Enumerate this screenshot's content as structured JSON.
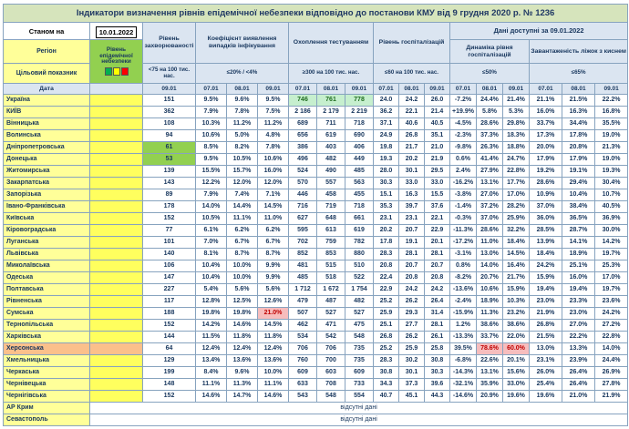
{
  "title": "Індикатори визначення рівнів епідемічної небезпеки відповідно до постанови КМУ від 9 грудня 2020 р. № 1236",
  "header": {
    "as_of_label": "Станом на",
    "as_of_date": "10.01.2022",
    "data_available_label": "Дані доступні за 09.01.2022",
    "region_label": "Регіон",
    "target_label": "Цільовий показник",
    "date_label": "Дата",
    "epidemic_level_label": "Рівень епідемічної небезпеки",
    "groups": [
      {
        "label": "Рівень захворюваності",
        "target": "<75 на 100 тис. нас.",
        "dates": [
          "09.01"
        ]
      },
      {
        "label": "Коефіцієнт виявлення випадків інфікування",
        "target": "≤20% / <4%",
        "dates": [
          "07.01",
          "08.01",
          "09.01"
        ]
      },
      {
        "label": "Охоплення тестуванням",
        "target": "≥300 на 100 тис. нас.",
        "dates": [
          "07.01",
          "08.01",
          "09.01"
        ]
      },
      {
        "label": "Рівень госпіталізацій",
        "target": "≤60 на 100 тис. нас.",
        "dates": [
          "07.01",
          "08.01",
          "09.01"
        ]
      },
      {
        "label": "Динаміка рівня госпіталізацій",
        "target": "≤50%",
        "dates": [
          "07.01",
          "08.01",
          "09.01"
        ]
      },
      {
        "label": "Завантаженість ліжок з киснем",
        "target": "≤65%",
        "dates": [
          "07.01",
          "08.01",
          "09.01"
        ]
      }
    ]
  },
  "legend_colors": [
    "#00b050",
    "#ffff00",
    "#ff0000"
  ],
  "no_data_text": "відсутні дані",
  "rows": [
    {
      "region": "Україна",
      "values": [
        "151",
        "9.5%",
        "9.6%",
        "9.5%",
        "746",
        "761",
        "778",
        "24.0",
        "24.2",
        "26.0",
        "-7.2%",
        "24.4%",
        "21.4%",
        "21.1%",
        "21.5%",
        "22.2%"
      ],
      "highlights": {
        "4": "gs",
        "5": "gs",
        "6": "gs"
      }
    },
    {
      "region": "КИЇВ",
      "values": [
        "362",
        "7.9%",
        "7.8%",
        "7.5%",
        "2 186",
        "2 179",
        "2 219",
        "36.2",
        "22.1",
        "21.4",
        "+19.9%",
        "5.8%",
        "5.3%",
        "16.0%",
        "16.3%",
        "16.8%"
      ]
    },
    {
      "region": "Вінницька",
      "values": [
        "108",
        "10.3%",
        "11.2%",
        "11.2%",
        "689",
        "711",
        "718",
        "37.1",
        "40.6",
        "40.5",
        "-4.5%",
        "28.6%",
        "29.8%",
        "33.7%",
        "34.4%",
        "35.5%"
      ]
    },
    {
      "region": "Волинська",
      "values": [
        "94",
        "10.6%",
        "5.0%",
        "4.8%",
        "656",
        "619",
        "690",
        "24.9",
        "26.8",
        "35.1",
        "-2.3%",
        "37.3%",
        "18.3%",
        "17.3%",
        "17.8%",
        "19.0%"
      ]
    },
    {
      "region": "Дніпропетровська",
      "values": [
        "61",
        "8.5%",
        "8.2%",
        "7.8%",
        "386",
        "403",
        "406",
        "19.8",
        "21.7",
        "21.0",
        "-9.8%",
        "26.3%",
        "18.8%",
        "20.0%",
        "20.8%",
        "21.3%"
      ],
      "highlights": {
        "0": "g"
      }
    },
    {
      "region": "Донецька",
      "values": [
        "53",
        "9.5%",
        "10.5%",
        "10.6%",
        "496",
        "482",
        "449",
        "19.3",
        "20.2",
        "21.9",
        "0.6%",
        "41.4%",
        "24.7%",
        "17.9%",
        "17.9%",
        "19.0%"
      ],
      "highlights": {
        "0": "g"
      }
    },
    {
      "region": "Житомирська",
      "values": [
        "139",
        "15.5%",
        "15.7%",
        "16.0%",
        "524",
        "490",
        "485",
        "28.0",
        "30.1",
        "29.5",
        "2.4%",
        "27.9%",
        "22.8%",
        "19.2%",
        "19.1%",
        "19.3%"
      ]
    },
    {
      "region": "Закарпатська",
      "values": [
        "143",
        "12.2%",
        "12.0%",
        "12.0%",
        "570",
        "557",
        "563",
        "30.3",
        "33.0",
        "33.0",
        "-16.2%",
        "13.1%",
        "17.7%",
        "28.6%",
        "29.4%",
        "30.4%"
      ]
    },
    {
      "region": "Запорізька",
      "values": [
        "89",
        "7.9%",
        "7.4%",
        "7.1%",
        "446",
        "458",
        "455",
        "15.1",
        "16.3",
        "15.5",
        "-3.8%",
        "27.0%",
        "17.0%",
        "10.9%",
        "10.4%",
        "10.7%"
      ]
    },
    {
      "region": "Івано-Франківська",
      "values": [
        "178",
        "14.0%",
        "14.4%",
        "14.5%",
        "716",
        "719",
        "718",
        "35.3",
        "39.7",
        "37.6",
        "-1.4%",
        "37.2%",
        "28.2%",
        "37.0%",
        "38.4%",
        "40.5%"
      ]
    },
    {
      "region": "Київська",
      "values": [
        "152",
        "10.5%",
        "11.1%",
        "11.0%",
        "627",
        "648",
        "661",
        "23.1",
        "23.1",
        "22.1",
        "-0.3%",
        "37.0%",
        "25.9%",
        "36.0%",
        "36.5%",
        "36.9%"
      ]
    },
    {
      "region": "Кіровоградська",
      "values": [
        "77",
        "6.1%",
        "6.2%",
        "6.2%",
        "595",
        "613",
        "619",
        "20.2",
        "20.7",
        "22.9",
        "-11.3%",
        "28.6%",
        "32.2%",
        "28.5%",
        "28.7%",
        "30.0%"
      ]
    },
    {
      "region": "Луганська",
      "values": [
        "101",
        "7.0%",
        "6.7%",
        "6.7%",
        "702",
        "759",
        "782",
        "17.8",
        "19.1",
        "20.1",
        "-17.2%",
        "11.0%",
        "18.4%",
        "13.9%",
        "14.1%",
        "14.2%"
      ]
    },
    {
      "region": "Львівська",
      "values": [
        "140",
        "8.1%",
        "8.7%",
        "8.7%",
        "852",
        "853",
        "880",
        "28.3",
        "28.1",
        "28.1",
        "-3.1%",
        "13.0%",
        "14.5%",
        "18.4%",
        "18.9%",
        "19.7%"
      ]
    },
    {
      "region": "Миколаївська",
      "values": [
        "106",
        "10.4%",
        "10.0%",
        "9.9%",
        "481",
        "515",
        "510",
        "20.8",
        "20.7",
        "20.7",
        "0.8%",
        "14.0%",
        "16.4%",
        "24.2%",
        "25.1%",
        "25.3%"
      ]
    },
    {
      "region": "Одеська",
      "values": [
        "147",
        "10.4%",
        "10.0%",
        "9.9%",
        "485",
        "518",
        "522",
        "22.4",
        "20.8",
        "20.8",
        "-8.2%",
        "20.7%",
        "21.7%",
        "15.9%",
        "16.0%",
        "17.0%"
      ]
    },
    {
      "region": "Полтавська",
      "values": [
        "227",
        "5.4%",
        "5.6%",
        "5.6%",
        "1 712",
        "1 672",
        "1 754",
        "22.9",
        "24.2",
        "24.2",
        "-13.6%",
        "10.6%",
        "15.9%",
        "19.4%",
        "19.4%",
        "19.7%"
      ]
    },
    {
      "region": "Рівненська",
      "values": [
        "117",
        "12.8%",
        "12.5%",
        "12.6%",
        "479",
        "487",
        "482",
        "25.2",
        "26.2",
        "26.4",
        "-2.4%",
        "18.9%",
        "10.3%",
        "23.0%",
        "23.3%",
        "23.6%"
      ]
    },
    {
      "region": "Сумська",
      "values": [
        "188",
        "19.8%",
        "19.8%",
        "21.0%",
        "507",
        "527",
        "527",
        "25.9",
        "29.3",
        "31.4",
        "-15.9%",
        "11.3%",
        "23.2%",
        "21.9%",
        "23.0%",
        "24.2%"
      ],
      "highlights": {
        "3": "r"
      }
    },
    {
      "region": "Тернопільська",
      "values": [
        "152",
        "14.2%",
        "14.6%",
        "14.5%",
        "462",
        "471",
        "475",
        "25.1",
        "27.7",
        "28.1",
        "1.2%",
        "38.6%",
        "38.6%",
        "26.8%",
        "27.0%",
        "27.2%"
      ]
    },
    {
      "region": "Харківська",
      "values": [
        "144",
        "11.5%",
        "11.8%",
        "11.8%",
        "534",
        "542",
        "548",
        "26.8",
        "26.2",
        "26.1",
        "-13.3%",
        "33.7%",
        "22.0%",
        "21.5%",
        "22.2%",
        "22.8%"
      ]
    },
    {
      "region": "Херсонська",
      "values": [
        "64",
        "12.4%",
        "12.4%",
        "12.4%",
        "706",
        "706",
        "735",
        "25.2",
        "25.9",
        "25.8",
        "39.5%",
        "78.6%",
        "60.0%",
        "13.0%",
        "13.3%",
        "14.0%"
      ],
      "highlights": {
        "0": "o",
        "11": "r",
        "12": "r"
      },
      "region_style": "o",
      "level_style": "o"
    },
    {
      "region": "Хмельницька",
      "values": [
        "129",
        "13.4%",
        "13.6%",
        "13.6%",
        "760",
        "700",
        "735",
        "28.3",
        "30.2",
        "30.8",
        "-6.8%",
        "22.6%",
        "20.1%",
        "23.1%",
        "23.9%",
        "24.4%"
      ]
    },
    {
      "region": "Черкаська",
      "values": [
        "199",
        "8.4%",
        "9.6%",
        "10.0%",
        "609",
        "603",
        "609",
        "30.8",
        "30.1",
        "30.3",
        "-14.3%",
        "13.1%",
        "15.6%",
        "26.0%",
        "26.4%",
        "26.9%"
      ]
    },
    {
      "region": "Чернівецька",
      "values": [
        "148",
        "11.1%",
        "11.3%",
        "11.1%",
        "633",
        "708",
        "733",
        "34.3",
        "37.3",
        "39.6",
        "-32.1%",
        "35.9%",
        "33.0%",
        "25.4%",
        "26.4%",
        "27.8%"
      ]
    },
    {
      "region": "Чернігівська",
      "values": [
        "152",
        "14.6%",
        "14.7%",
        "14.6%",
        "543",
        "548",
        "554",
        "40.7",
        "45.1",
        "44.3",
        "-14.6%",
        "20.9%",
        "19.6%",
        "19.6%",
        "21.0%",
        "21.9%"
      ]
    },
    {
      "region": "АР Крим",
      "no_data": true
    },
    {
      "region": "Севастополь",
      "no_data": true
    }
  ]
}
